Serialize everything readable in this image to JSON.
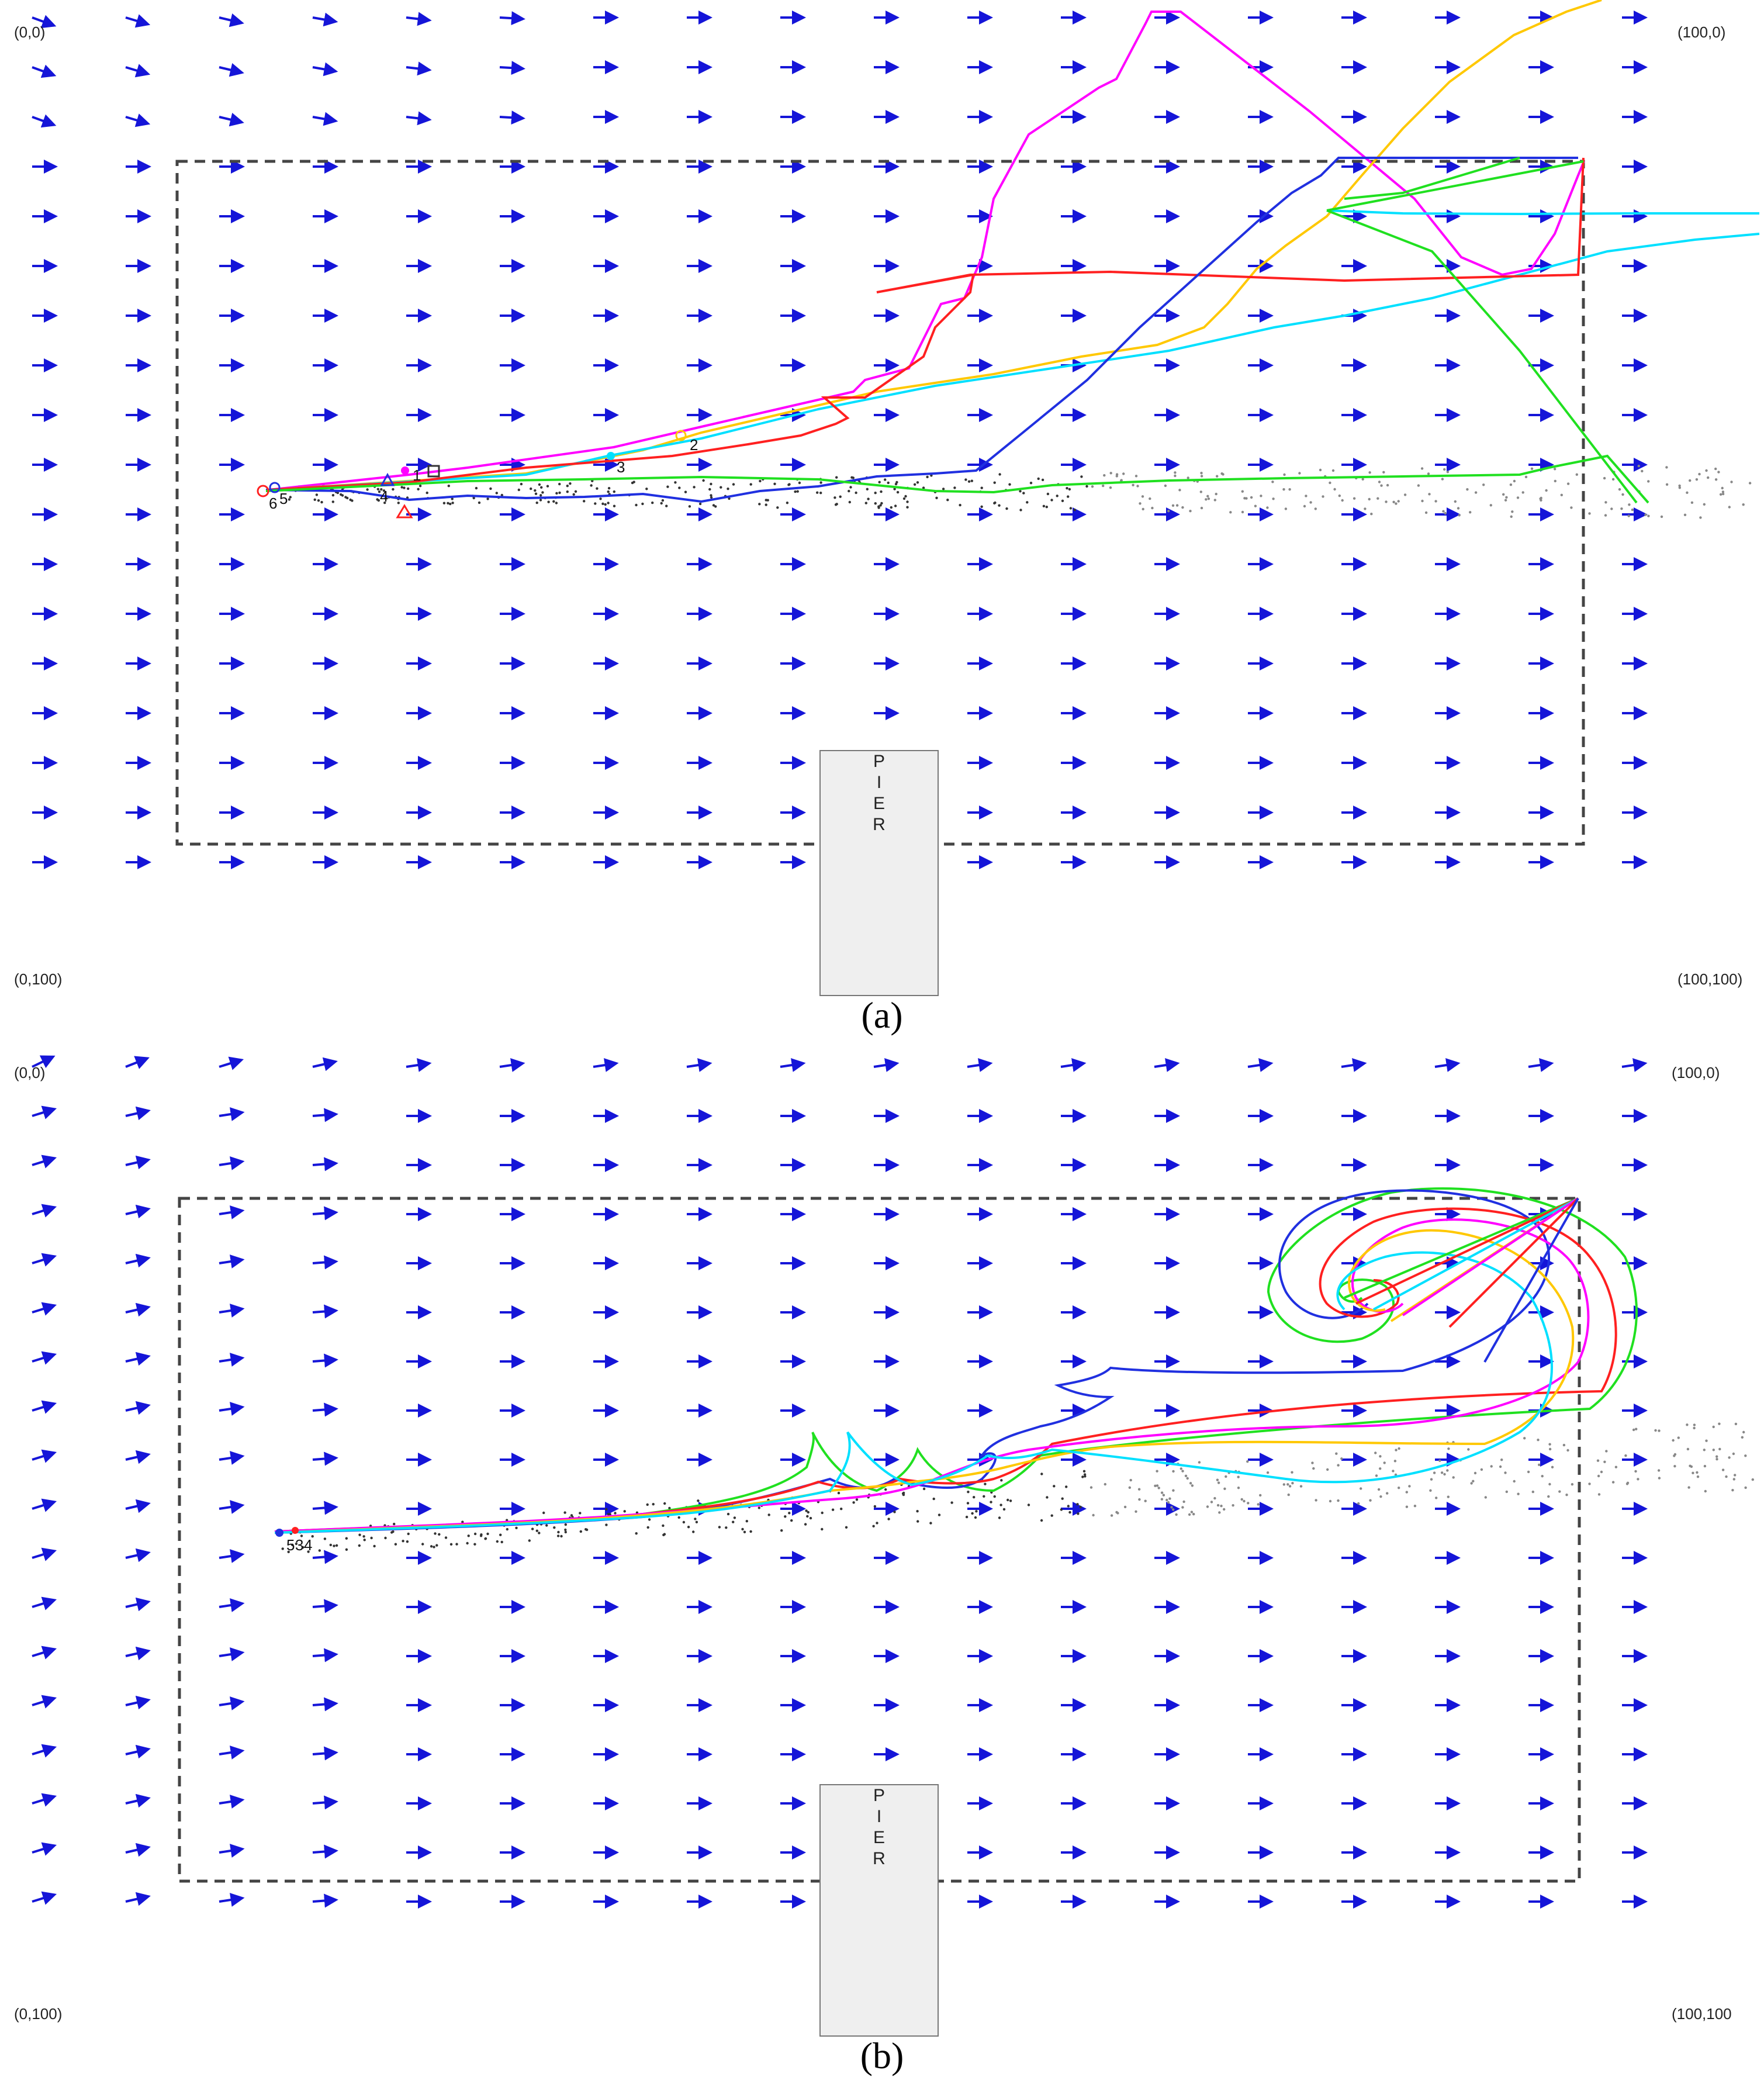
{
  "panels": [
    {
      "id": "a",
      "caption": "(a)",
      "corners": {
        "top_left": "(0,0)",
        "top_right": "(100,0)",
        "bottom_left": "(0,100)",
        "bottom_right": "(100,100)"
      },
      "pier_letters": [
        "P",
        "I",
        "E",
        "R"
      ],
      "point_labels": [
        "1",
        "2",
        "3",
        "4",
        "5",
        "6"
      ],
      "colors": {
        "arrows": "#1515d8",
        "boundary": "#444444",
        "pier_fill": "#efefef"
      }
    },
    {
      "id": "b",
      "caption": "(b)",
      "corners": {
        "top_left": "(0,0)",
        "top_right": "(100,0)",
        "bottom_left": "(0,100)",
        "bottom_right": "(100,100"
      },
      "pier_letters": [
        "P",
        "I",
        "E",
        "R"
      ],
      "point_labels": [
        "5",
        "3",
        "4"
      ],
      "colors": {
        "arrows": "#1515d8",
        "boundary": "#444444",
        "pier_fill": "#efefef"
      }
    }
  ],
  "trajectory_colors": [
    "#ff00ff",
    "#ffc800",
    "#00e0ff",
    "#ff2020",
    "#2030e0",
    "#20e020"
  ]
}
